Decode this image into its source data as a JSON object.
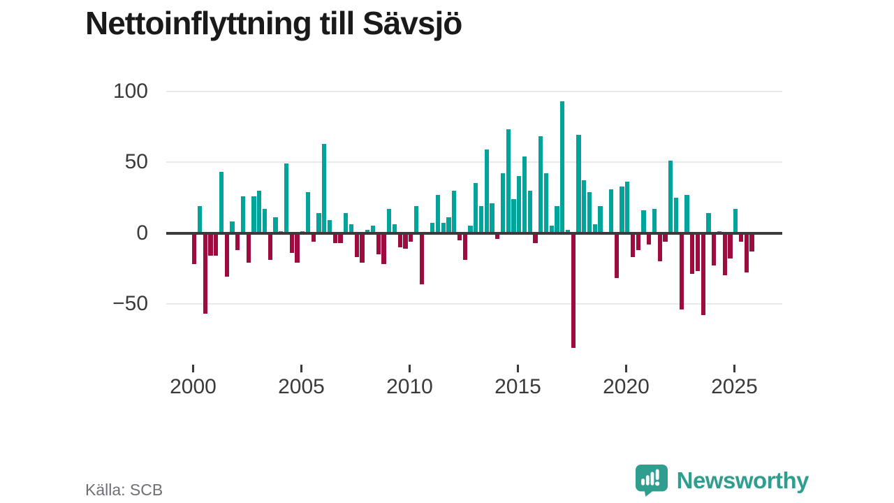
{
  "title": "Nettoinflyttning till Sävsjö",
  "source_label": "Källa: SCB",
  "branding": {
    "logo_text": "Newsworthy",
    "logo_icon": "newsworthy-speech-bubble-bar-chart-icon"
  },
  "colors": {
    "positive_bar": "#00a49b",
    "negative_bar": "#9e0c3f",
    "zero_line": "#3a3a3a",
    "gridline": "#e9e9e9",
    "axis_text": "#3a3a3a",
    "title_text": "#1a1a1a",
    "source_text": "#6f6f78",
    "brand_teal": "#2f9e8f"
  },
  "chart_data": {
    "type": "bar",
    "title": "Nettoinflyttning till Sävsjö",
    "frequency": "quarterly",
    "start_period": "2000-Q1",
    "end_period": "2025-Q4",
    "values": [
      -22,
      19,
      -57,
      -16,
      -16,
      43,
      -31,
      8,
      -12,
      26,
      -21,
      26,
      30,
      17,
      -19,
      11,
      1,
      49,
      -14,
      -21,
      1,
      29,
      -6,
      14,
      63,
      9,
      -7,
      -7,
      14,
      6,
      -17,
      -21,
      2,
      5,
      -15,
      -22,
      17,
      6,
      -10,
      -11,
      -6,
      19,
      -36,
      0,
      7,
      27,
      7,
      11,
      30,
      -5,
      -19,
      5,
      35,
      19,
      59,
      21,
      -4,
      42,
      73,
      24,
      40,
      54,
      30,
      -7,
      68,
      42,
      5,
      19,
      93,
      2,
      -81,
      69,
      37,
      29,
      6,
      19,
      0,
      31,
      -32,
      33,
      36,
      -17,
      -12,
      16,
      -8,
      17,
      -20,
      -6,
      51,
      25,
      -54,
      27,
      -29,
      -27,
      -58,
      14,
      -23,
      1,
      -30,
      -18,
      17,
      -6,
      -28,
      -13
    ],
    "x_tick_labels": [
      "2000",
      "2005",
      "2010",
      "2015",
      "2020",
      "2025"
    ],
    "y_ticks": [
      100,
      50,
      0,
      -50
    ],
    "y_tick_labels": [
      "100",
      "50",
      "0",
      "−50"
    ],
    "grid": "horizontal",
    "legend": "none",
    "ylim": [
      -92,
      107
    ],
    "positive_color": "#00a49b",
    "negative_color": "#9e0c3f"
  }
}
